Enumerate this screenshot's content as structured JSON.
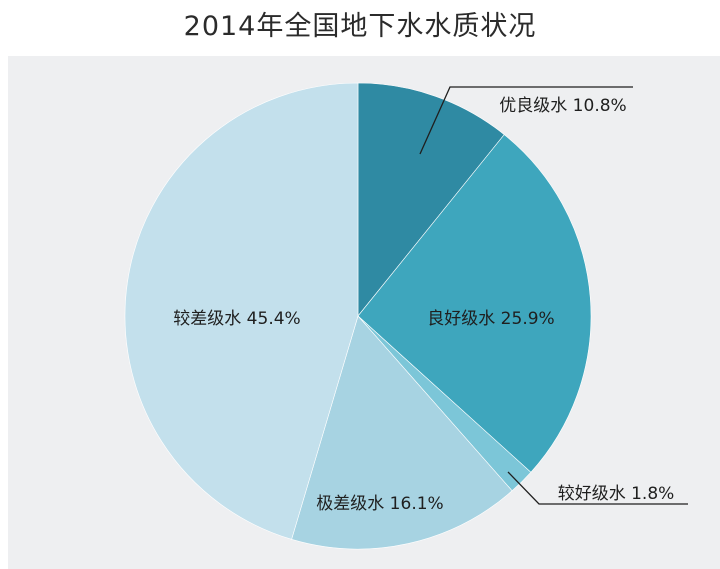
{
  "chart_data": {
    "type": "pie",
    "title": "2014年全国地下水水质状况",
    "start_angle_deg": 0,
    "direction": "clockwise",
    "slices": [
      {
        "label": "优良级水",
        "value": 10.8,
        "display": "优良级水 10.8%",
        "color": "#2f8aa3"
      },
      {
        "label": "良好级水",
        "value": 25.9,
        "display": "良好级水 25.9%",
        "color": "#3ea6bd"
      },
      {
        "label": "较好级水",
        "value": 1.8,
        "display": "较好级水 1.8%",
        "color": "#7cc6d8"
      },
      {
        "label": "极差级水",
        "value": 16.1,
        "display": "极差级水 16.1%",
        "color": "#a7d3e2"
      },
      {
        "label": "较差级水",
        "value": 45.4,
        "display": "较差级水 45.4%",
        "color": "#c3e0ec"
      }
    ]
  }
}
